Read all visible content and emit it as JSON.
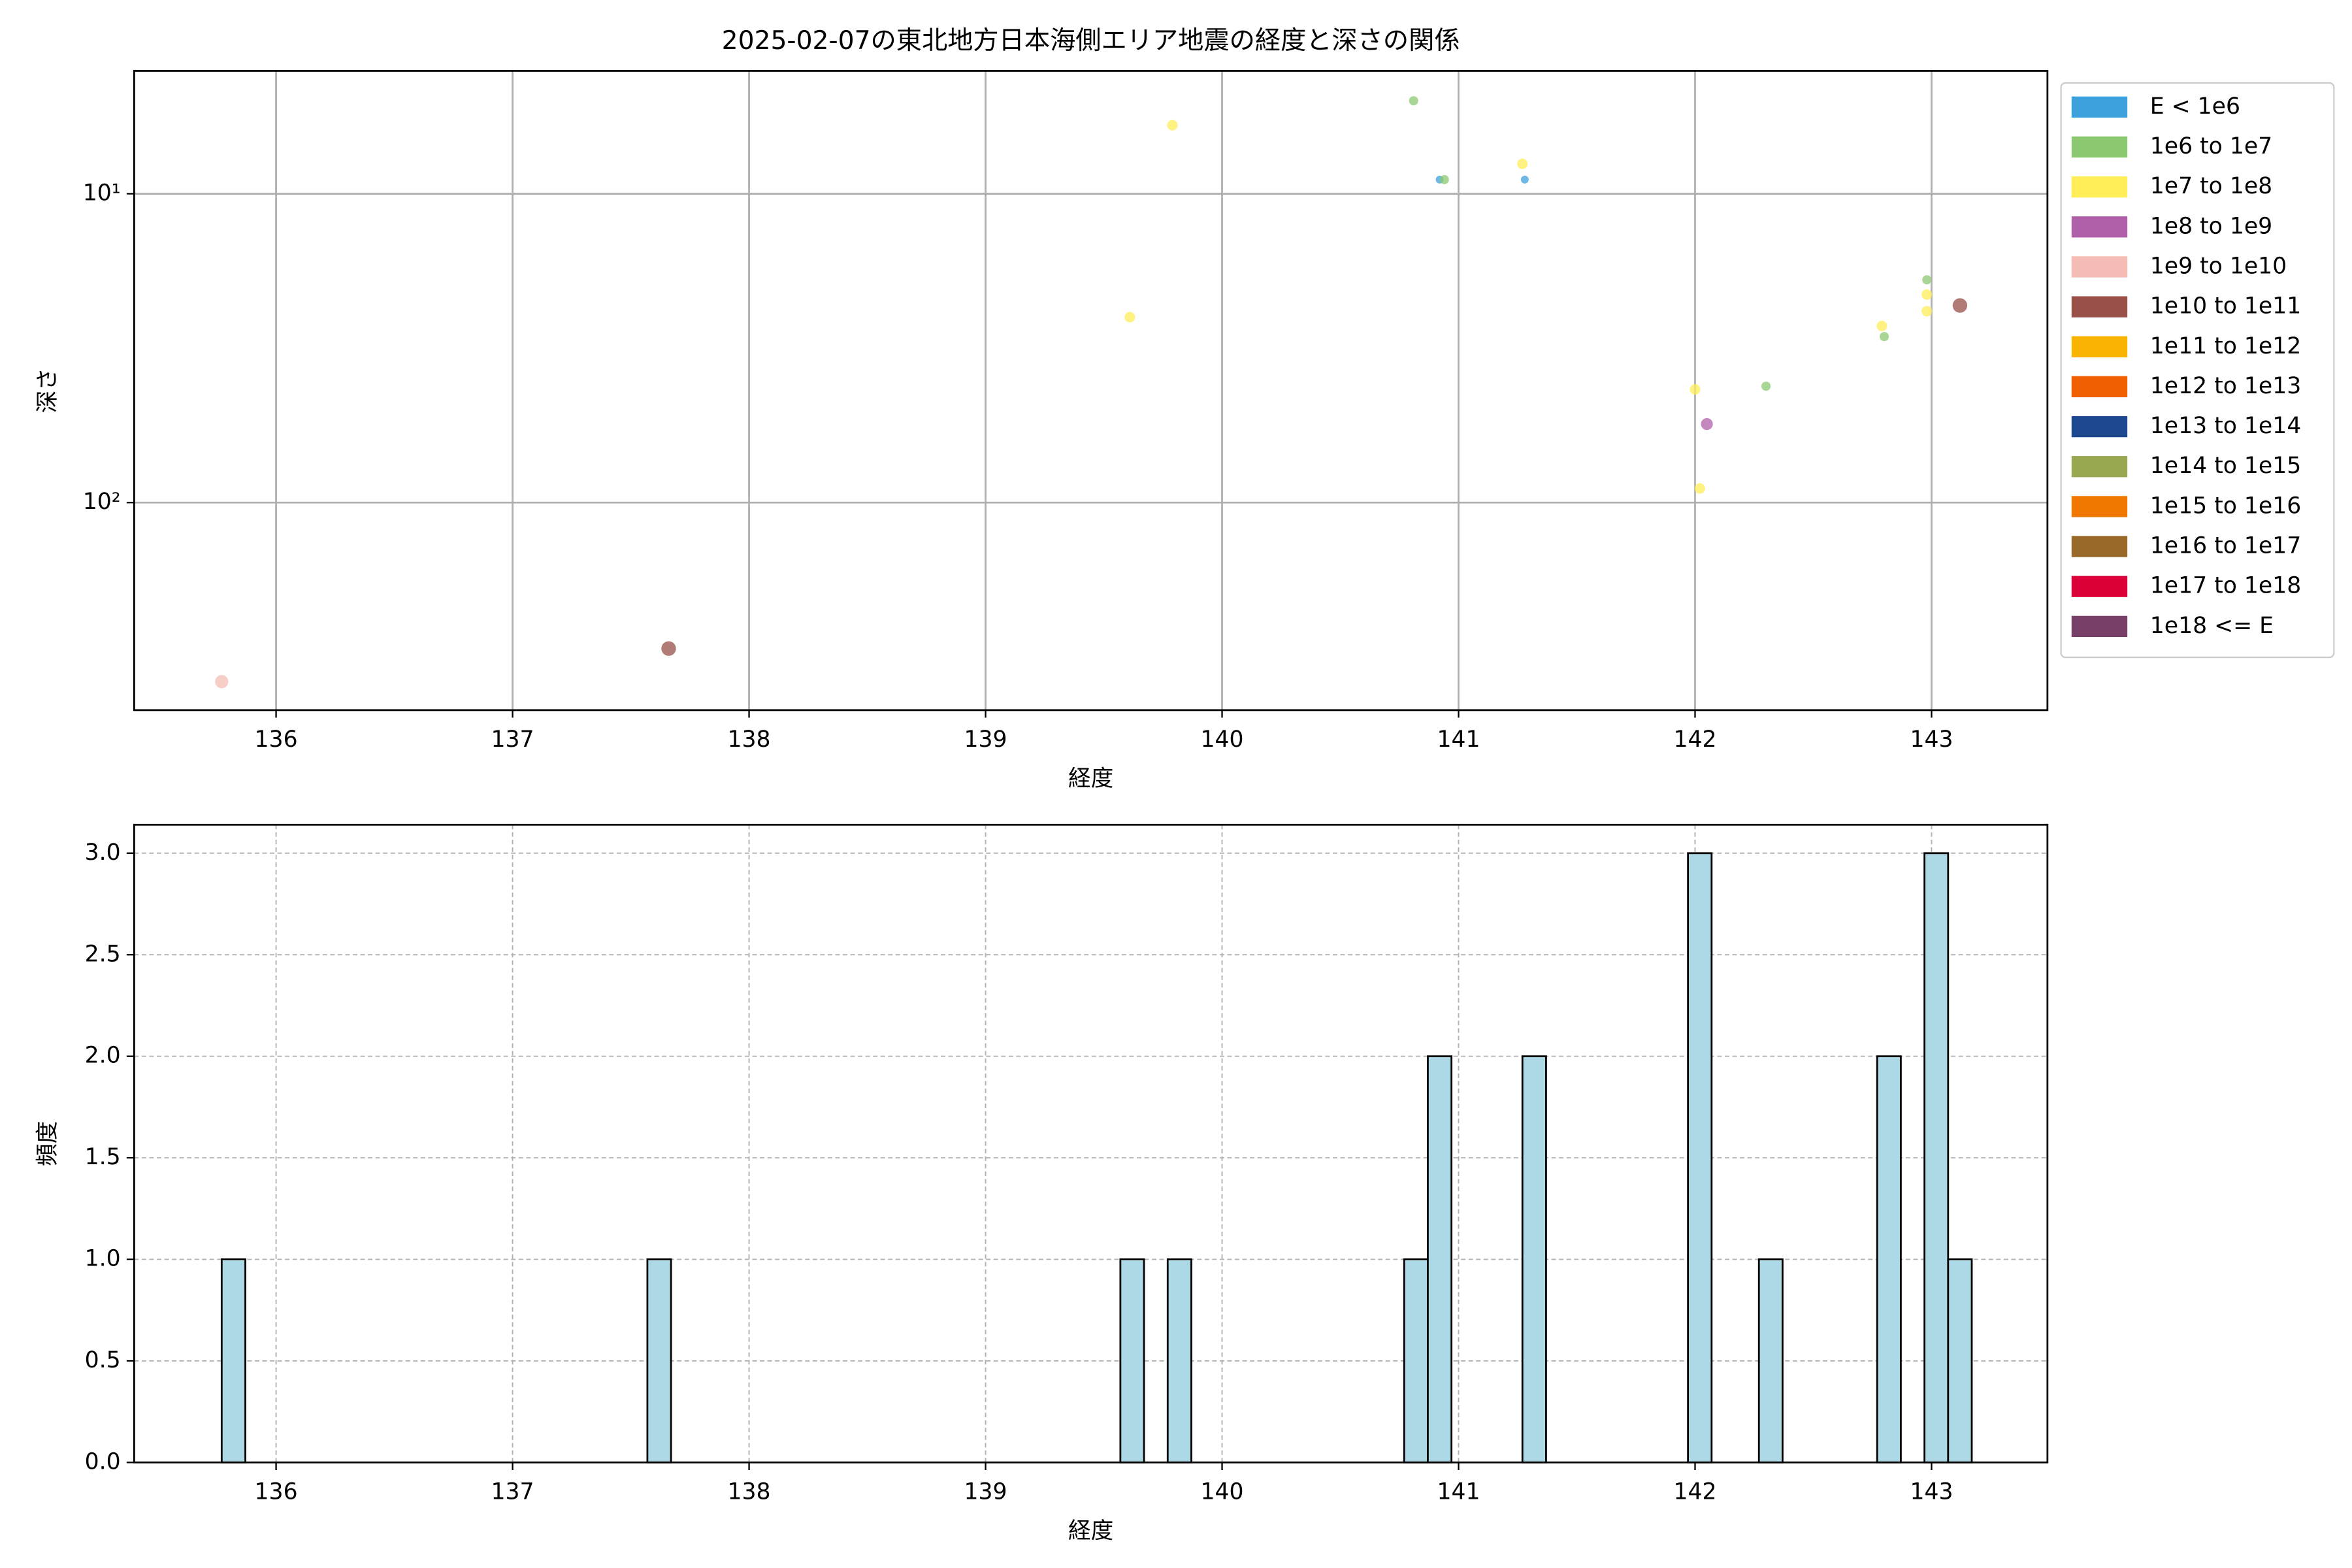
{
  "chart_data": [
    {
      "type": "scatter",
      "title": "2025-02-07の東北地方日本海側エリア地震の経度と深さの関係",
      "xlabel": "経度",
      "ylabel": "深さ",
      "xlim": [
        135.4,
        143.49
      ],
      "xticks": [
        136,
        137,
        138,
        139,
        140,
        141,
        142,
        143
      ],
      "ylim": [
        4,
        470
      ],
      "yscale": "log",
      "yinvert": true,
      "yticks": [
        {
          "value": 10,
          "label": "10¹"
        },
        {
          "value": 100,
          "label": "10²"
        }
      ],
      "grid": true,
      "legend": "right",
      "series": [
        {
          "name": "E < 1e6",
          "color": "#3ca0dc",
          "x": [
            140.92,
            141.28
          ],
          "values": [
            9.0,
            9.0
          ]
        },
        {
          "name": "1e6 to 1e7",
          "color": "#8cc870",
          "x": [
            140.81,
            140.94,
            142.3,
            142.8,
            142.98
          ],
          "values": [
            5.0,
            9.0,
            42,
            29,
            19
          ]
        },
        {
          "name": "1e7 to 1e8",
          "color": "#ffee58",
          "x": [
            139.61,
            139.79,
            141.27,
            142.0,
            142.02,
            142.79,
            142.98,
            142.98
          ],
          "values": [
            25.1,
            6.0,
            8.0,
            43,
            90,
            26.8,
            21.2,
            24
          ]
        },
        {
          "name": "1e8 to 1e9",
          "color": "#b060a8",
          "x": [
            142.05
          ],
          "values": [
            55.7
          ]
        },
        {
          "name": "1e9 to 1e10",
          "color": "#f4bcb4",
          "x": [
            135.77
          ],
          "values": [
            380
          ]
        },
        {
          "name": "1e10 to 1e11",
          "color": "#985048",
          "x": [
            137.66,
            143.12
          ],
          "values": [
            297,
            23
          ]
        },
        {
          "name": "1e11 to 1e12",
          "color": "#f8b400",
          "x": [],
          "values": []
        },
        {
          "name": "1e12 to 1e13",
          "color": "#f06000",
          "x": [],
          "values": []
        },
        {
          "name": "1e13 to 1e14",
          "color": "#1c4890",
          "x": [],
          "values": []
        },
        {
          "name": "1e14 to 1e15",
          "color": "#98a850",
          "x": [],
          "values": []
        },
        {
          "name": "1e15 to 1e16",
          "color": "#f07800",
          "x": [],
          "values": []
        },
        {
          "name": "1e16 to 1e17",
          "color": "#986828",
          "x": [],
          "values": []
        },
        {
          "name": "1e17 to 1e18",
          "color": "#dc0038",
          "x": [],
          "values": []
        },
        {
          "name": "1e18 <= E",
          "color": "#784068",
          "x": [],
          "values": []
        }
      ]
    },
    {
      "type": "histogram",
      "xlabel": "経度",
      "ylabel": "頻度",
      "color": "#add8e6",
      "edgecolor": "#000000",
      "grid": true,
      "xlim": [
        135.4,
        143.49
      ],
      "xticks": [
        136,
        137,
        138,
        139,
        140,
        141,
        142,
        143
      ],
      "ylim": [
        0,
        3.14
      ],
      "yticks": [
        {
          "value": 0,
          "label": "0.0"
        },
        {
          "value": 0.5,
          "label": "0.5"
        },
        {
          "value": 1,
          "label": "1.0"
        },
        {
          "value": 1.5,
          "label": "1.5"
        },
        {
          "value": 2,
          "label": "2.0"
        },
        {
          "value": 2.5,
          "label": "2.5"
        },
        {
          "value": 3,
          "label": "3.0"
        }
      ],
      "bins": [
        135.77,
        135.87,
        135.97,
        136.07,
        136.17,
        136.27,
        136.37,
        136.47,
        136.57,
        136.67,
        136.77,
        136.87,
        136.97,
        137.07,
        137.17,
        137.27,
        137.37,
        137.47,
        137.57,
        137.67,
        137.77,
        137.87,
        137.97,
        138.07,
        138.17,
        138.27,
        138.37,
        138.47,
        138.57,
        138.67,
        138.77,
        138.87,
        138.97,
        139.07,
        139.17,
        139.27,
        139.37,
        139.47,
        139.57,
        139.67,
        139.77,
        139.87,
        139.97,
        140.07,
        140.17,
        140.27,
        140.37,
        140.47,
        140.57,
        140.67,
        140.77,
        140.87,
        140.97,
        141.07,
        141.17,
        141.27,
        141.37,
        141.47,
        141.57,
        141.67,
        141.77,
        141.87,
        141.97,
        142.07,
        142.17,
        142.27,
        142.37,
        142.47,
        142.57,
        142.67,
        142.77,
        142.87,
        142.97,
        143.07,
        143.17
      ],
      "counts": [
        1,
        0,
        0,
        0,
        0,
        0,
        0,
        0,
        0,
        0,
        0,
        0,
        0,
        0,
        0,
        0,
        0,
        0,
        1,
        0,
        0,
        0,
        0,
        0,
        0,
        0,
        0,
        0,
        0,
        0,
        0,
        0,
        0,
        0,
        0,
        0,
        0,
        0,
        1,
        0,
        1,
        0,
        0,
        0,
        0,
        0,
        0,
        0,
        0,
        0,
        1,
        2,
        0,
        0,
        0,
        2,
        0,
        0,
        0,
        0,
        0,
        0,
        3,
        0,
        0,
        1,
        0,
        0,
        0,
        0,
        2,
        0,
        3,
        1
      ]
    }
  ]
}
